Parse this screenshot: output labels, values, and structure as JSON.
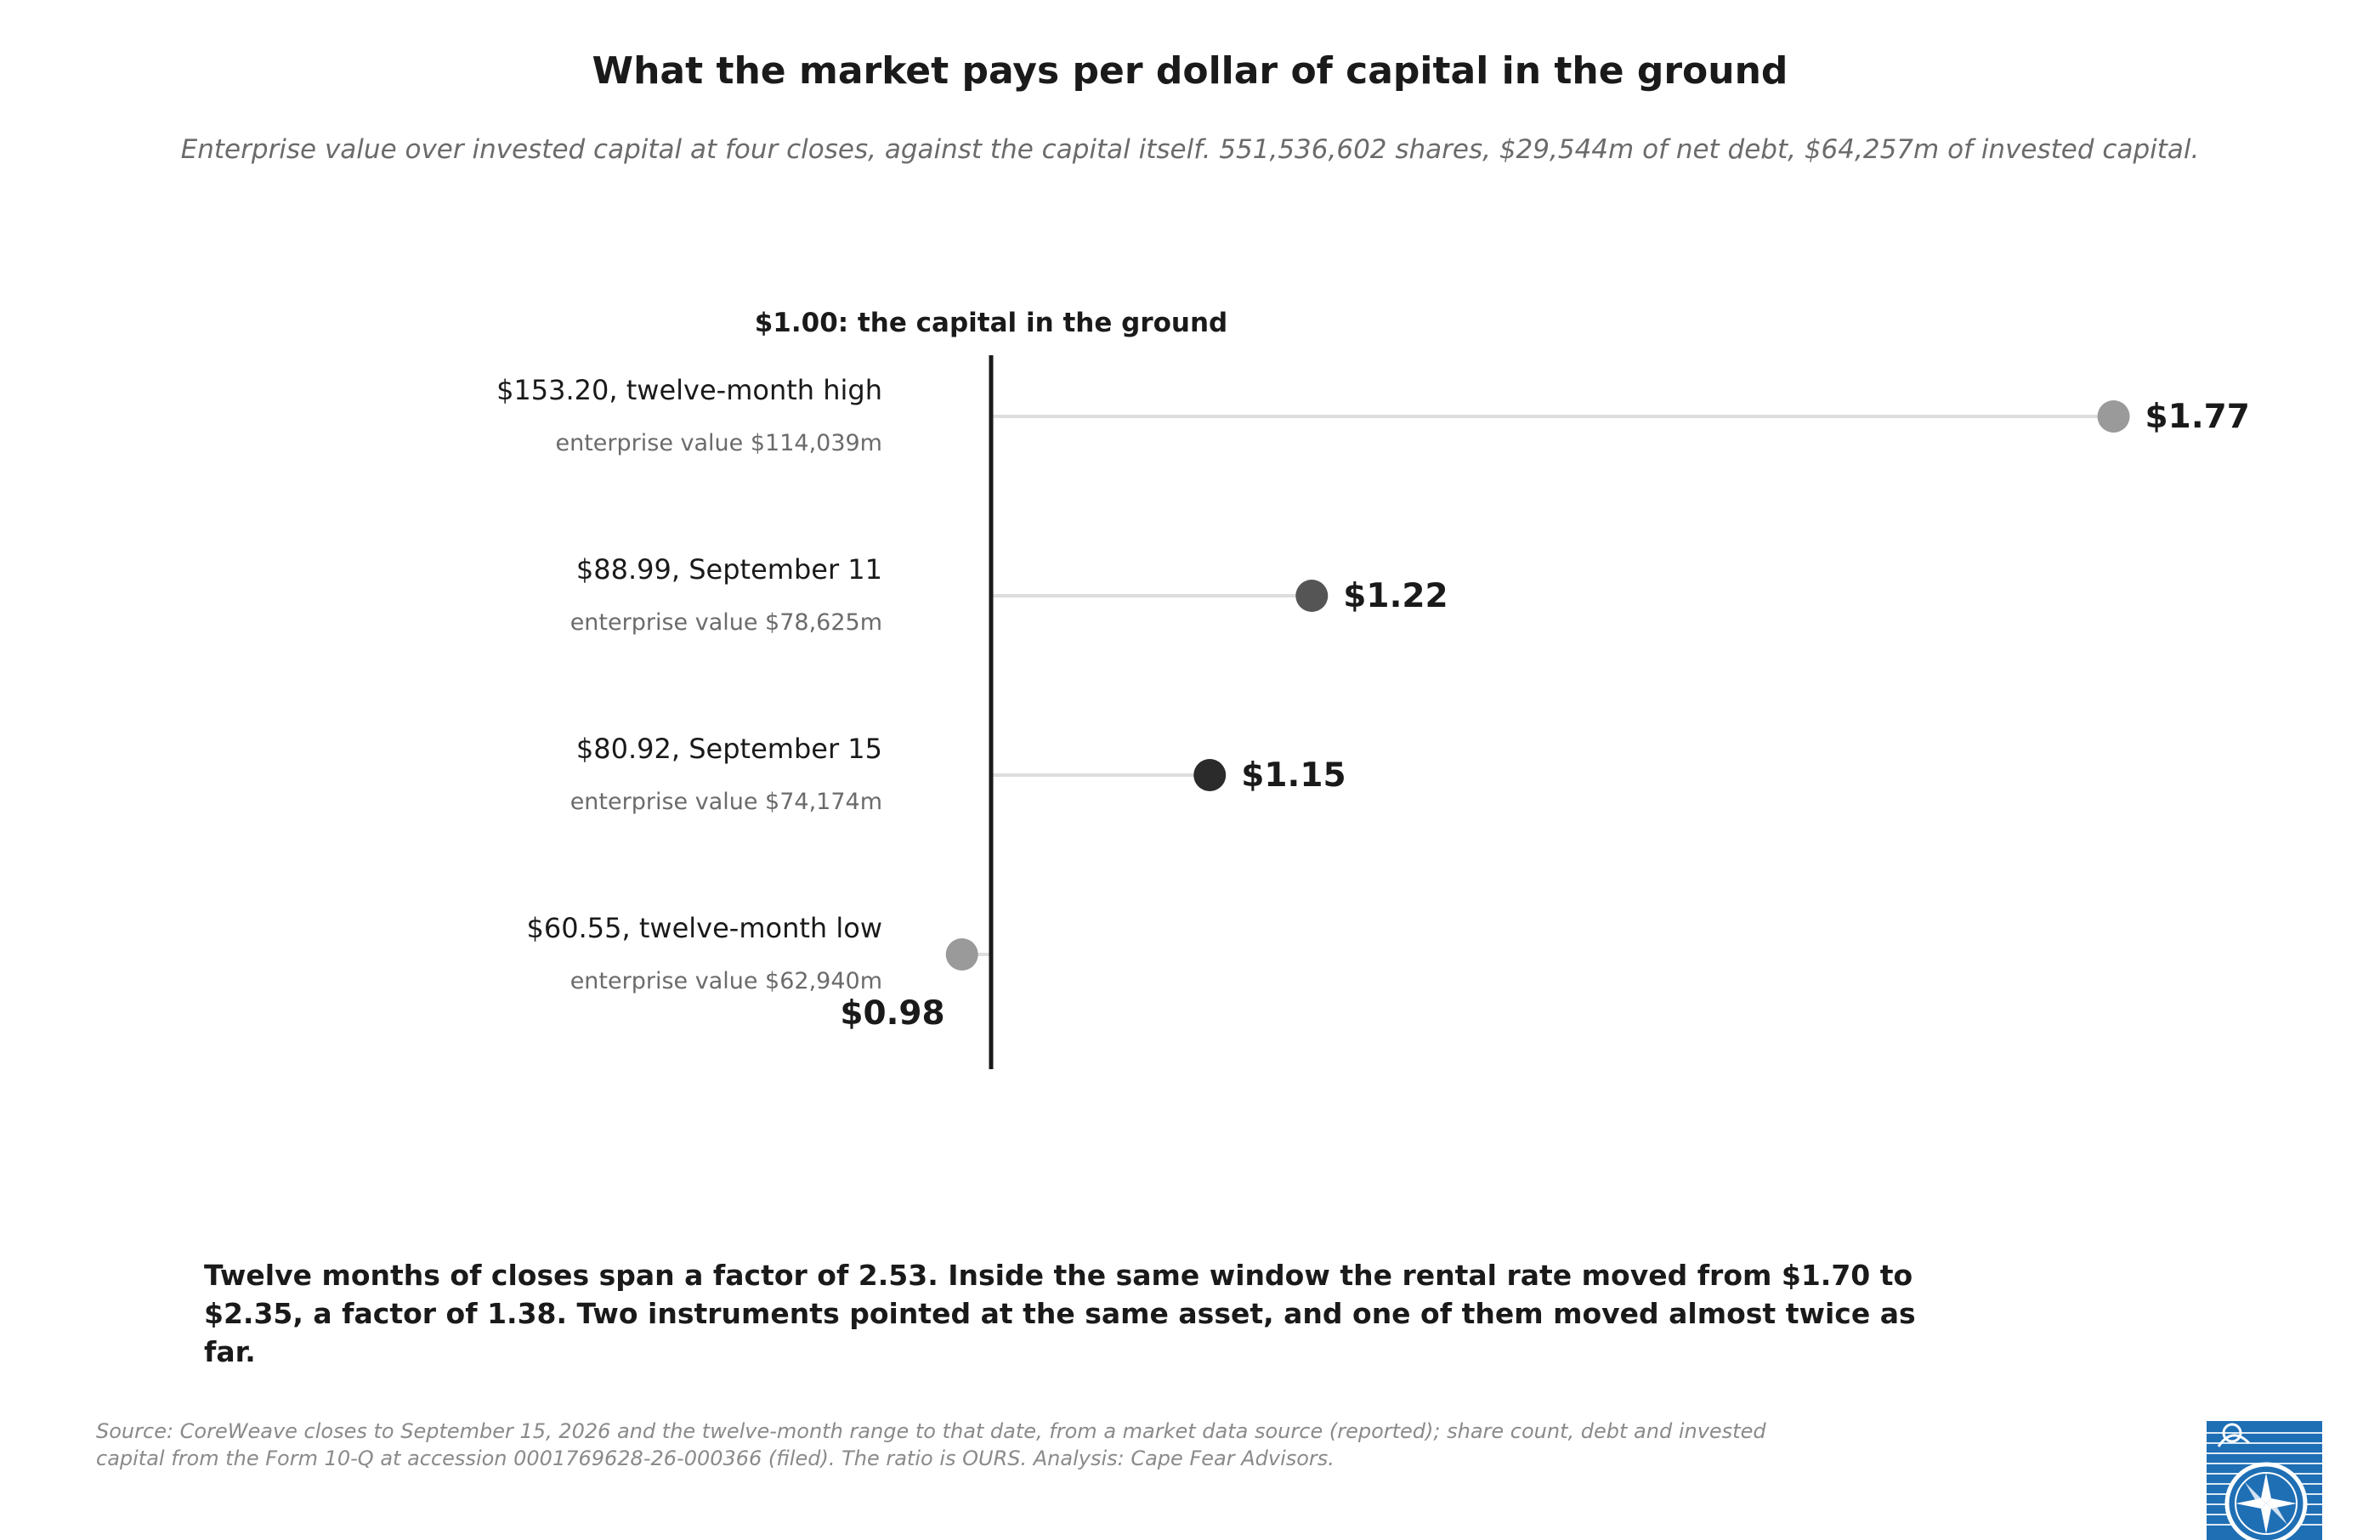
{
  "title": "What the market pays per dollar of capital in the ground",
  "subtitle": "Enterprise value over invested capital at four closes, against the capital itself. 551,536,602 shares, $29,544m of net debt, $64,257m of invested capital.",
  "chart_data": {
    "type": "dot",
    "reference": {
      "value": 1.0,
      "label": "$1.00: the capital in the ground"
    },
    "rows": [
      {
        "label": "$153.20, twelve-month high",
        "sublabel": "enterprise value $114,039m",
        "value": 1.77,
        "value_label": "$1.77",
        "color": "#9a9a9a"
      },
      {
        "label": "$88.99, September 11",
        "sublabel": "enterprise value $78,625m",
        "value": 1.22,
        "value_label": "$1.22",
        "color": "#555555"
      },
      {
        "label": "$80.92, September 15",
        "sublabel": "enterprise value $74,174m",
        "value": 1.15,
        "value_label": "$1.15",
        "color": "#2b2b2b"
      },
      {
        "label": "$60.55, twelve-month low",
        "sublabel": "enterprise value $62,940m",
        "value": 0.98,
        "value_label": "$0.98",
        "color": "#9a9a9a"
      }
    ],
    "colors": {
      "reference_line": "#1a1a1a",
      "stem": "#dddddd",
      "label": "#1a1a1a",
      "sublabel": "#6b6b6b"
    }
  },
  "takeaway": "Twelve months of closes span a factor of 2.53. Inside the same window the rental rate moved from $1.70 to $2.35, a factor of 1.38. Two instruments pointed at the same asset, and one of them moved almost twice as far.",
  "source": "Source: CoreWeave closes to September 15, 2026 and the twelve-month range to that date, from a market data source (reported); share count, debt and invested capital from the Form 10-Q at accession 0001769628-26-000366 (filed). The ratio is OURS. Analysis: Cape Fear Advisors.",
  "logo": {
    "icon": "compass-rose-logo-icon",
    "color": "#1f6fb5"
  }
}
